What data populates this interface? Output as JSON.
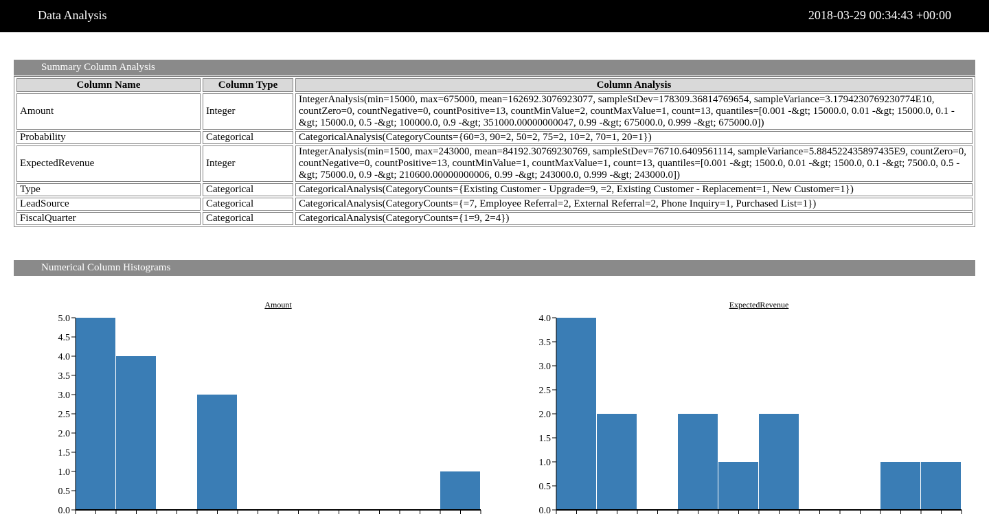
{
  "header": {
    "title": "Data Analysis",
    "timestamp": "2018-03-29 00:34:43 +00:00"
  },
  "summary": {
    "section_title": "Summary Column Analysis",
    "columns": [
      "Column Name",
      "Column Type",
      "Column Analysis"
    ],
    "rows": [
      {
        "name": "Amount",
        "type": "Integer",
        "analysis": "IntegerAnalysis(min=15000, max=675000, mean=162692.3076923077, sampleStDev=178309.36814769654, sampleVariance=3.1794230769230774E10, countZero=0, countNegative=0, countPositive=13, countMinValue=2, countMaxValue=1, count=13, quantiles=[0.001 -&gt; 15000.0, 0.01 -&gt; 15000.0, 0.1 -&gt; 15000.0, 0.5 -&gt; 100000.0, 0.9 -&gt; 351000.00000000047, 0.99 -&gt; 675000.0, 0.999 -&gt; 675000.0])"
      },
      {
        "name": "Probability",
        "type": "Categorical",
        "analysis": "CategoricalAnalysis(CategoryCounts={60=3, 90=2, 50=2, 75=2, 10=2, 70=1, 20=1})"
      },
      {
        "name": "ExpectedRevenue",
        "type": "Integer",
        "analysis": "IntegerAnalysis(min=1500, max=243000, mean=84192.30769230769, sampleStDev=76710.6409561114, sampleVariance=5.884522435897435E9, countZero=0, countNegative=0, countPositive=13, countMinValue=1, countMaxValue=1, count=13, quantiles=[0.001 -&gt; 1500.0, 0.01 -&gt; 1500.0, 0.1 -&gt; 7500.0, 0.5 -&gt; 75000.0, 0.9 -&gt; 210600.00000000006, 0.99 -&gt; 243000.0, 0.999 -&gt; 243000.0])"
      },
      {
        "name": "Type",
        "type": "Categorical",
        "analysis": "CategoricalAnalysis(CategoryCounts={Existing Customer - Upgrade=9, =2, Existing Customer - Replacement=1, New Customer=1})"
      },
      {
        "name": "LeadSource",
        "type": "Categorical",
        "analysis": "CategoricalAnalysis(CategoryCounts={=7, Employee Referral=2, External Referral=2, Phone Inquiry=1, Purchased List=1})"
      },
      {
        "name": "FiscalQuarter",
        "type": "Categorical",
        "analysis": "CategoricalAnalysis(CategoryCounts={1=9, 2=4})"
      }
    ]
  },
  "histograms": {
    "section_title": "Numerical Column Histograms",
    "bar_color": "#3a7db5"
  },
  "chart_data": [
    {
      "type": "bar",
      "title": "Amount",
      "bins": 10,
      "values": [
        5,
        4,
        0,
        3,
        0,
        0,
        0,
        0,
        0,
        1
      ],
      "ylim": [
        0,
        5
      ],
      "yticks": [
        "0.0",
        "0.5",
        "1.0",
        "1.5",
        "2.0",
        "2.5",
        "3.0",
        "3.5",
        "4.0",
        "4.5",
        "5.0"
      ],
      "grid": false
    },
    {
      "type": "bar",
      "title": "ExpectedRevenue",
      "bins": 10,
      "values": [
        4,
        2,
        0,
        2,
        1,
        2,
        0,
        0,
        1,
        1
      ],
      "ylim": [
        0,
        4
      ],
      "yticks": [
        "0.0",
        "0.5",
        "1.0",
        "1.5",
        "2.0",
        "2.5",
        "3.0",
        "3.5",
        "4.0"
      ],
      "grid": false
    }
  ]
}
